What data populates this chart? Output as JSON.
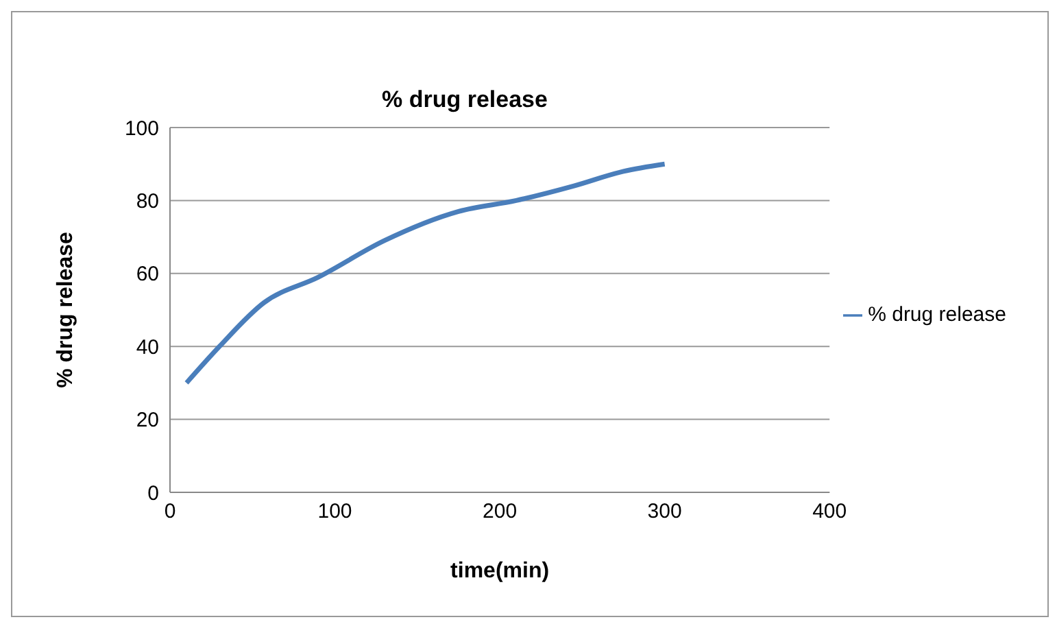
{
  "chart_data": {
    "type": "line",
    "title": "% drug release",
    "xlabel": "time(min)",
    "ylabel": "% drug release",
    "xlim": [
      0,
      400
    ],
    "xticks": [
      0,
      100,
      200,
      300,
      400
    ],
    "ylim": [
      0,
      100
    ],
    "yticks": [
      0,
      20,
      40,
      60,
      80,
      100
    ],
    "grid": "y",
    "legend": "right",
    "marker": "none",
    "series": [
      {
        "name": "% drug release",
        "color": "#4a7ebb",
        "x": [
          10,
          30,
          57,
          90,
          130,
          175,
          210,
          245,
          275,
          300
        ],
        "values": [
          30,
          40,
          52,
          59,
          69,
          77,
          80,
          84,
          88,
          90
        ]
      }
    ]
  }
}
